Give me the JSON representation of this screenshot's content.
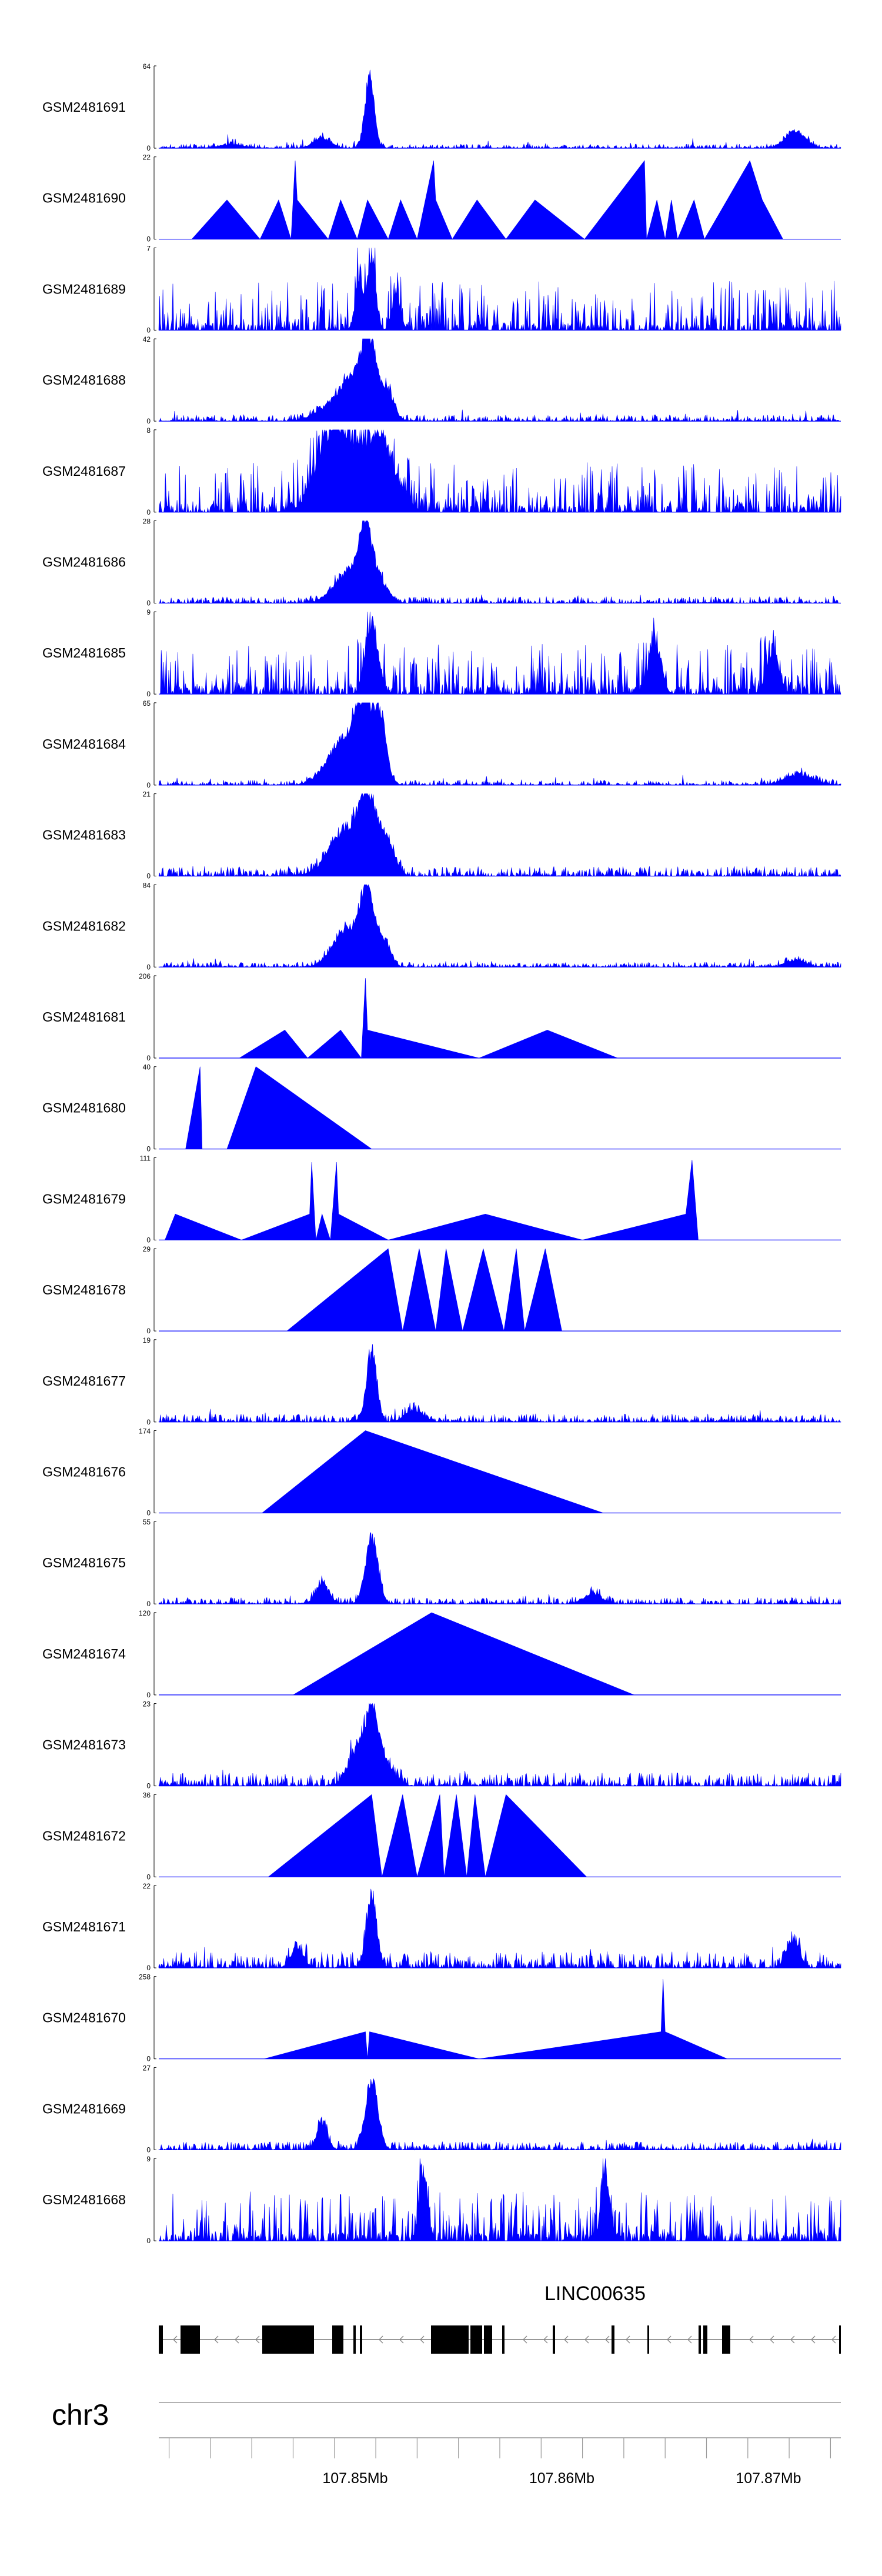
{
  "chart_data": {
    "type": "area",
    "title": "",
    "chromosome": "chr3",
    "xlim": [
      107.8405,
      107.8735
    ],
    "x_unit": "Mb",
    "tick_labels": [
      {
        "pos": 107.85,
        "text": "107.85Mb"
      },
      {
        "pos": 107.86,
        "text": "107.86Mb"
      },
      {
        "pos": 107.87,
        "text": "107.87Mb"
      }
    ],
    "gene": {
      "name": "LINC00635",
      "strand": "-",
      "start": 107.8405,
      "end": 107.8735
    },
    "tracks": [
      {
        "name": "GSM2481691",
        "ymin": "0",
        "ymax": "64",
        "ylim": [
          0,
          64
        ],
        "style": "dense",
        "baseline": 0.025,
        "seed": 11,
        "peaks": [
          [
            107.8507,
            64,
            0.00022
          ],
          [
            107.8484,
            9,
            0.0004
          ],
          [
            107.8713,
            14,
            0.0005
          ],
          [
            107.844,
            3,
            0.0006
          ]
        ]
      },
      {
        "name": "GSM2481690",
        "ymin": "0",
        "ymax": "22",
        "ylim": [
          0,
          22
        ],
        "style": "points",
        "points": [
          [
            107.8421,
            0
          ],
          [
            107.8438,
            10.5
          ],
          [
            107.8454,
            0
          ],
          [
            107.8463,
            10.5
          ],
          [
            107.8469,
            0
          ],
          [
            107.8471,
            21
          ],
          [
            107.8472,
            10.5
          ],
          [
            107.8487,
            0
          ],
          [
            107.8493,
            10.5
          ],
          [
            107.8501,
            0
          ],
          [
            107.8506,
            10.5
          ],
          [
            107.8516,
            0
          ],
          [
            107.8522,
            10.5
          ],
          [
            107.853,
            0
          ],
          [
            107.8538,
            21
          ],
          [
            107.8539,
            10.5
          ],
          [
            107.8547,
            0
          ],
          [
            107.8559,
            10.5
          ],
          [
            107.8573,
            0
          ],
          [
            107.8587,
            10.5
          ],
          [
            107.8611,
            0
          ],
          [
            107.864,
            21
          ],
          [
            107.8641,
            0
          ],
          [
            107.8646,
            10.5
          ],
          [
            107.865,
            0
          ],
          [
            107.8653,
            10.5
          ],
          [
            107.8656,
            0
          ],
          [
            107.8664,
            10.5
          ],
          [
            107.8669,
            0
          ],
          [
            107.8691,
            21
          ],
          [
            107.8697,
            10.5
          ],
          [
            107.8707,
            0
          ]
        ]
      },
      {
        "name": "GSM2481689",
        "ymin": "0",
        "ymax": "7",
        "ylim": [
          0,
          7
        ],
        "style": "spiky",
        "baseline": 0.06,
        "seed": 23,
        "peaks": [
          [
            107.8508,
            6.6,
            0.0002
          ],
          [
            107.8502,
            4.5,
            0.0002
          ],
          [
            107.852,
            3.5,
            0.0002
          ]
        ]
      },
      {
        "name": "GSM2481688",
        "ymin": "0",
        "ymax": "42",
        "ylim": [
          0,
          42
        ],
        "style": "dense",
        "baseline": 0.04,
        "seed": 37,
        "peaks": [
          [
            107.8507,
            40,
            0.00035
          ],
          [
            107.85,
            22,
            0.0006
          ],
          [
            107.8516,
            16,
            0.0003
          ],
          [
            107.849,
            9,
            0.0008
          ]
        ]
      },
      {
        "name": "GSM2481687",
        "ymin": "0",
        "ymax": "8",
        "ylim": [
          0,
          8
        ],
        "style": "spiky",
        "baseline": 0.08,
        "seed": 41,
        "peaks": [
          [
            107.85,
            7,
            0.0012
          ],
          [
            107.8487,
            5,
            0.0006
          ],
          [
            107.8514,
            4,
            0.0006
          ]
        ]
      },
      {
        "name": "GSM2481686",
        "ymin": "0",
        "ymax": "28",
        "ylim": [
          0,
          28
        ],
        "style": "dense",
        "baseline": 0.04,
        "seed": 53,
        "peaks": [
          [
            107.8505,
            26,
            0.0003
          ],
          [
            107.8497,
            12,
            0.0007
          ],
          [
            107.8512,
            8,
            0.0004
          ]
        ]
      },
      {
        "name": "GSM2481685",
        "ymin": "0",
        "ymax": "9",
        "ylim": [
          0,
          9
        ],
        "style": "spiky",
        "baseline": 0.1,
        "seed": 61,
        "peaks": [
          [
            107.8508,
            8.5,
            0.0003
          ],
          [
            107.8645,
            6,
            0.0003
          ],
          [
            107.8702,
            5,
            0.0003
          ]
        ]
      },
      {
        "name": "GSM2481684",
        "ymin": "0",
        "ymax": "65",
        "ylim": [
          0,
          65
        ],
        "style": "dense",
        "baseline": 0.03,
        "seed": 71,
        "peaks": [
          [
            107.8504,
            60,
            0.0004
          ],
          [
            107.8512,
            56,
            0.0003
          ],
          [
            107.8495,
            40,
            0.0008
          ],
          [
            107.8715,
            9,
            0.0007
          ]
        ]
      },
      {
        "name": "GSM2481683",
        "ymin": "0",
        "ymax": "21",
        "ylim": [
          0,
          21
        ],
        "style": "dense",
        "baseline": 0.06,
        "seed": 83,
        "peaks": [
          [
            107.8506,
            19,
            0.0004
          ],
          [
            107.8496,
            13,
            0.0008
          ],
          [
            107.8515,
            9,
            0.0004
          ]
        ]
      },
      {
        "name": "GSM2481682",
        "ymin": "0",
        "ymax": "84",
        "ylim": [
          0,
          84
        ],
        "style": "dense",
        "baseline": 0.03,
        "seed": 97,
        "peaks": [
          [
            107.8506,
            80,
            0.0003
          ],
          [
            107.8497,
            45,
            0.0007
          ],
          [
            107.8514,
            30,
            0.0003
          ],
          [
            107.8713,
            8,
            0.0005
          ]
        ]
      },
      {
        "name": "GSM2481681",
        "ymin": "0",
        "ymax": "206",
        "ylim": [
          0,
          206
        ],
        "style": "points",
        "points": [
          [
            107.8444,
            0
          ],
          [
            107.8466,
            70
          ],
          [
            107.8477,
            0
          ],
          [
            107.8493,
            70
          ],
          [
            107.8503,
            0
          ],
          [
            107.8505,
            200
          ],
          [
            107.8506,
            70
          ],
          [
            107.856,
            0
          ],
          [
            107.8593,
            70
          ],
          [
            107.8627,
            0
          ]
        ]
      },
      {
        "name": "GSM2481680",
        "ymin": "0",
        "ymax": "40",
        "ylim": [
          0,
          40
        ],
        "style": "points",
        "points": [
          [
            107.8418,
            0
          ],
          [
            107.8425,
            40
          ],
          [
            107.8426,
            0
          ],
          [
            107.8438,
            0
          ],
          [
            107.8452,
            40
          ],
          [
            107.8508,
            0
          ]
        ]
      },
      {
        "name": "GSM2481679",
        "ymin": "0",
        "ymax": "111",
        "ylim": [
          0,
          111
        ],
        "style": "points",
        "points": [
          [
            107.8408,
            0
          ],
          [
            107.8413,
            35
          ],
          [
            107.8445,
            0
          ],
          [
            107.8478,
            35
          ],
          [
            107.8479,
            105
          ],
          [
            107.8481,
            0
          ],
          [
            107.8484,
            35
          ],
          [
            107.8488,
            0
          ],
          [
            107.8491,
            105
          ],
          [
            107.8492,
            35
          ],
          [
            107.8516,
            0
          ],
          [
            107.8563,
            35
          ],
          [
            107.861,
            0
          ],
          [
            107.866,
            35
          ],
          [
            107.8663,
            108
          ],
          [
            107.8666,
            0
          ]
        ]
      },
      {
        "name": "GSM2481678",
        "ymin": "0",
        "ymax": "29",
        "ylim": [
          0,
          29
        ],
        "style": "points",
        "points": [
          [
            107.8467,
            0
          ],
          [
            107.8516,
            29
          ],
          [
            107.8523,
            0
          ],
          [
            107.8531,
            29
          ],
          [
            107.8539,
            0
          ],
          [
            107.8544,
            29
          ],
          [
            107.8552,
            0
          ],
          [
            107.8562,
            29
          ],
          [
            107.8572,
            0
          ],
          [
            107.8578,
            29
          ],
          [
            107.8582,
            0
          ],
          [
            107.8592,
            29
          ],
          [
            107.86,
            0
          ]
        ]
      },
      {
        "name": "GSM2481677",
        "ymin": "0",
        "ymax": "19",
        "ylim": [
          0,
          19
        ],
        "style": "dense",
        "baseline": 0.05,
        "seed": 109,
        "peaks": [
          [
            107.8508,
            18,
            0.00025
          ],
          [
            107.8528,
            3,
            0.0004
          ]
        ]
      },
      {
        "name": "GSM2481676",
        "ymin": "0",
        "ymax": "174",
        "ylim": [
          0,
          174
        ],
        "style": "points",
        "points": [
          [
            107.8455,
            0
          ],
          [
            107.8505,
            174
          ],
          [
            107.862,
            0
          ]
        ]
      },
      {
        "name": "GSM2481675",
        "ymin": "0",
        "ymax": "55",
        "ylim": [
          0,
          55
        ],
        "style": "dense",
        "baseline": 0.04,
        "seed": 127,
        "peaks": [
          [
            107.8508,
            50,
            0.0003
          ],
          [
            107.8484,
            15,
            0.0003
          ],
          [
            107.8615,
            8,
            0.0004
          ]
        ]
      },
      {
        "name": "GSM2481674",
        "ymin": "0",
        "ymax": "120",
        "ylim": [
          0,
          120
        ],
        "style": "points",
        "points": [
          [
            107.847,
            0
          ],
          [
            107.8537,
            120
          ],
          [
            107.8635,
            0
          ]
        ]
      },
      {
        "name": "GSM2481673",
        "ymin": "0",
        "ymax": "23",
        "ylim": [
          0,
          23
        ],
        "style": "dense",
        "baseline": 0.08,
        "seed": 139,
        "peaks": [
          [
            107.8508,
            21,
            0.00035
          ],
          [
            107.85,
            10,
            0.0004
          ],
          [
            107.8515,
            6,
            0.0004
          ]
        ]
      },
      {
        "name": "GSM2481672",
        "ymin": "0",
        "ymax": "36",
        "ylim": [
          0,
          36
        ],
        "style": "points",
        "points": [
          [
            107.8458,
            0
          ],
          [
            107.8508,
            36
          ],
          [
            107.8513,
            0
          ],
          [
            107.8523,
            36
          ],
          [
            107.853,
            0
          ],
          [
            107.8541,
            36
          ],
          [
            107.8543,
            0
          ],
          [
            107.8549,
            36
          ],
          [
            107.8554,
            0
          ],
          [
            107.8558,
            36
          ],
          [
            107.8563,
            0
          ],
          [
            107.8573,
            36
          ],
          [
            107.8612,
            0
          ]
        ]
      },
      {
        "name": "GSM2481671",
        "ymin": "0",
        "ymax": "22",
        "ylim": [
          0,
          22
        ],
        "style": "dense",
        "baseline": 0.1,
        "seed": 151,
        "peaks": [
          [
            107.8508,
            21,
            0.00025
          ],
          [
            107.8472,
            6,
            0.0003
          ],
          [
            107.8712,
            8,
            0.0003
          ]
        ]
      },
      {
        "name": "GSM2481670",
        "ymin": "0",
        "ymax": "258",
        "ylim": [
          0,
          258
        ],
        "style": "points",
        "points": [
          [
            107.8456,
            0
          ],
          [
            107.8505,
            85
          ],
          [
            107.8506,
            0
          ],
          [
            107.8507,
            85
          ],
          [
            107.856,
            0
          ],
          [
            107.8648,
            85
          ],
          [
            107.8649,
            250
          ],
          [
            107.865,
            85
          ],
          [
            107.868,
            0
          ]
        ]
      },
      {
        "name": "GSM2481669",
        "ymin": "0",
        "ymax": "27",
        "ylim": [
          0,
          27
        ],
        "style": "dense",
        "baseline": 0.05,
        "seed": 163,
        "peaks": [
          [
            107.8508,
            25,
            0.0003
          ],
          [
            107.8484,
            10,
            0.00025
          ]
        ]
      },
      {
        "name": "GSM2481668",
        "ymin": "0",
        "ymax": "9",
        "ylim": [
          0,
          9
        ],
        "style": "spiky",
        "baseline": 0.1,
        "seed": 179,
        "peaks": [
          [
            107.8533,
            8.5,
            0.0002
          ],
          [
            107.8621,
            8.5,
            0.0002
          ]
        ]
      }
    ]
  }
}
